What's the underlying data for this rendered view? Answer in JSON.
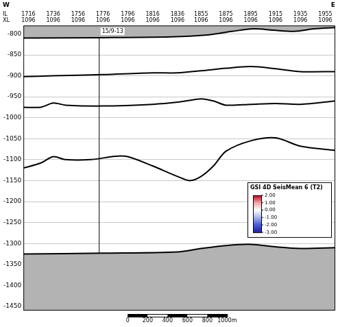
{
  "chart_data": {
    "type": "line",
    "corner_labels": {
      "left": "W",
      "right": "E"
    },
    "x_row_labels": [
      "IL",
      "XL"
    ],
    "xlim": [
      1712,
      1963
    ],
    "xticks": [
      1716,
      1736,
      1756,
      1776,
      1796,
      1816,
      1836,
      1855,
      1875,
      1895,
      1915,
      1935,
      1955
    ],
    "xtick_xl_labels": [
      "1096",
      "1096",
      "1096",
      "1096",
      "1096",
      "1096",
      "1096",
      "1096",
      "1096",
      "1096",
      "1096",
      "1096",
      "1096"
    ],
    "ylim": [
      -1460,
      -780
    ],
    "yticks": [
      -800,
      -850,
      -900,
      -950,
      -1000,
      -1050,
      -1100,
      -1150,
      -1200,
      -1250,
      -1300,
      -1350,
      -1400,
      -1450
    ],
    "grid": true,
    "series": [
      {
        "color": "#000000",
        "x": [
          1712,
          1776,
          1831,
          1858,
          1880,
          1897,
          1913,
          1930,
          1946,
          1963
        ],
        "values": [
          -810,
          -809,
          -807,
          -803,
          -794,
          -788,
          -791,
          -794,
          -788,
          -785
        ]
      },
      {
        "color": "#000000",
        "x": [
          1712,
          1736,
          1776,
          1816,
          1836,
          1855,
          1875,
          1895,
          1915,
          1935,
          1963
        ],
        "values": [
          -902,
          -900,
          -897,
          -893,
          -893,
          -888,
          -882,
          -878,
          -883,
          -890,
          -890
        ]
      },
      {
        "color": "#000000",
        "x": [
          1712,
          1726,
          1736,
          1746,
          1776,
          1816,
          1836,
          1855,
          1865,
          1875,
          1895,
          1915,
          1935,
          1963
        ],
        "values": [
          -975,
          -975,
          -965,
          -970,
          -972,
          -968,
          -963,
          -955,
          -960,
          -970,
          -968,
          -966,
          -968,
          -960
        ]
      },
      {
        "color": "#000000",
        "x": [
          1712,
          1726,
          1736,
          1746,
          1766,
          1786,
          1796,
          1816,
          1836,
          1846,
          1855,
          1865,
          1875,
          1895,
          1915,
          1935,
          1963
        ],
        "values": [
          -1120,
          -1108,
          -1093,
          -1100,
          -1100,
          -1092,
          -1093,
          -1115,
          -1140,
          -1150,
          -1140,
          -1115,
          -1080,
          -1055,
          -1048,
          -1068,
          -1078
        ]
      },
      {
        "color": "#000000",
        "x": [
          1712,
          1776,
          1836,
          1855,
          1875,
          1895,
          1915,
          1935,
          1963
        ],
        "values": [
          -1325,
          -1323,
          -1320,
          -1312,
          -1305,
          -1302,
          -1308,
          -1312,
          -1310
        ]
      }
    ],
    "well": {
      "name": "15/9-13",
      "x": 1773,
      "color": "#000000"
    },
    "scale_bar": {
      "x": 1796,
      "m_per_x": 12.5,
      "ticks": [
        0,
        200,
        400,
        600,
        800,
        {
          "value": 1000,
          "label": "1000m"
        }
      ]
    },
    "colorbar": {
      "title": "GSI 4D SeisMean 6 (T2)",
      "range": [
        -3,
        2
      ],
      "ticks": [
        {
          "value": 2,
          "label": "2.00"
        },
        {
          "value": 1,
          "label": "1.00"
        },
        {
          "value": 0,
          "label": "0.00"
        },
        {
          "value": -1,
          "label": "-1.00"
        },
        {
          "value": -2,
          "label": "-2.00"
        },
        {
          "value": -3,
          "label": "-3.00"
        }
      ],
      "colors": [
        "#b40426",
        "#f2a3a3",
        "#ffffff",
        "#a6b4e6",
        "#4a5bd0",
        "#1f1f9e"
      ]
    }
  }
}
